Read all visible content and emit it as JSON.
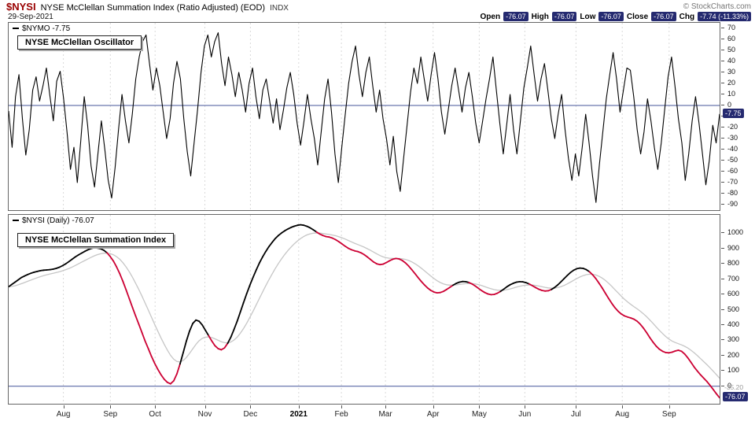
{
  "header": {
    "symbol": "$NYSI",
    "title": "NYSE McClellan Summation Index (Ratio Adjusted) (EOD)",
    "exchange": "INDX",
    "copyright": "© StockCharts.com",
    "date": "29-Sep-2021",
    "quote": {
      "open_label": "Open",
      "open": "-76.07",
      "high_label": "High",
      "high": "-76.07",
      "low_label": "Low",
      "low": "-76.07",
      "close_label": "Close",
      "close": "-76.07",
      "chg_label": "Chg",
      "chg": "-7.74 (-11.33%)"
    }
  },
  "panels": {
    "oscillator": {
      "legend": "$NYMO -7.75",
      "box_label": "NYSE McClellan Oscillator",
      "last_value_label": "-7.75"
    },
    "summation": {
      "legend": "$NYSI (Daily) -76.07",
      "box_label": "NYSE McClellan Summation Index",
      "last_value_label": "-76.07",
      "ema_value_label": "-35.20"
    }
  },
  "colors": {
    "symbol_red": "#990000",
    "chip_navy": "#252a70",
    "zero_line_blue": "#44549a",
    "decline_red": "#cc0033",
    "ema_gray": "#c6c6c6",
    "grid_gray": "#d9d9d9"
  },
  "months": {
    "labels": [
      "Aug",
      "Sep",
      "Oct",
      "Nov",
      "Dec",
      "2021",
      "Feb",
      "Mar",
      "Apr",
      "May",
      "Jun",
      "Jul",
      "Aug",
      "Sep"
    ],
    "fractions": [
      0.077,
      0.143,
      0.206,
      0.276,
      0.34,
      0.408,
      0.468,
      0.53,
      0.597,
      0.662,
      0.726,
      0.798,
      0.863,
      0.929
    ],
    "bold": "2021"
  },
  "chart_data": [
    {
      "type": "line",
      "name": "$NYMO",
      "title": "NYSE McClellan Oscillator",
      "ylim": [
        -95,
        75
      ],
      "yticks": [
        70,
        60,
        50,
        40,
        30,
        20,
        10,
        0,
        -10,
        -20,
        -30,
        -40,
        -50,
        -60,
        -70,
        -80,
        -90
      ],
      "zero_line": 0,
      "grid": "vertical-dashed-monthly",
      "legend_position": "top-left",
      "x_ticks": [
        "Aug",
        "Sep",
        "Oct",
        "Nov",
        "Dec",
        "2021",
        "Feb",
        "Mar",
        "Apr",
        "May",
        "Jun",
        "Jul",
        "Aug",
        "Sep"
      ],
      "last": -7.75,
      "values": [
        -5,
        -38,
        8,
        28,
        -12,
        -45,
        -22,
        14,
        26,
        4,
        18,
        34,
        9,
        -14,
        22,
        31,
        6,
        -24,
        -58,
        -38,
        -70,
        -32,
        8,
        -18,
        -55,
        -74,
        -44,
        -14,
        -40,
        -68,
        -84,
        -56,
        -22,
        10,
        -14,
        -34,
        -8,
        24,
        44,
        58,
        64,
        38,
        14,
        34,
        18,
        -6,
        -30,
        -12,
        20,
        40,
        24,
        -12,
        -42,
        -64,
        -34,
        -4,
        30,
        54,
        64,
        44,
        58,
        66,
        38,
        18,
        44,
        28,
        8,
        30,
        14,
        -6,
        20,
        34,
        8,
        -12,
        14,
        24,
        4,
        -16,
        6,
        -22,
        -4,
        16,
        30,
        10,
        -16,
        -36,
        -14,
        10,
        -12,
        -30,
        -54,
        -24,
        6,
        24,
        -6,
        -44,
        -70,
        -38,
        -8,
        20,
        40,
        54,
        28,
        8,
        30,
        44,
        18,
        -6,
        14,
        -12,
        -30,
        -54,
        -28,
        -60,
        -78,
        -48,
        -18,
        12,
        34,
        20,
        44,
        24,
        4,
        28,
        48,
        24,
        -6,
        -26,
        -4,
        18,
        34,
        14,
        -6,
        16,
        30,
        8,
        -16,
        -34,
        -14,
        6,
        24,
        44,
        14,
        -16,
        -44,
        -18,
        10,
        -22,
        -44,
        -14,
        16,
        34,
        54,
        28,
        4,
        24,
        38,
        14,
        -12,
        -30,
        -8,
        10,
        -22,
        -48,
        -68,
        -44,
        -64,
        -38,
        -8,
        -34,
        -64,
        -88,
        -54,
        -24,
        6,
        28,
        48,
        24,
        -6,
        14,
        34,
        32,
        8,
        -22,
        -44,
        -24,
        6,
        -14,
        -38,
        -58,
        -34,
        -4,
        26,
        44,
        18,
        -12,
        -34,
        -68,
        -44,
        -14,
        8,
        -16,
        -44,
        -72,
        -50,
        -18,
        -34,
        -7.75
      ]
    },
    {
      "type": "line",
      "name": "$NYSI (Daily)",
      "title": "NYSE McClellan Summation Index",
      "ylim": [
        -115,
        1120
      ],
      "yticks": [
        1000,
        900,
        800,
        700,
        600,
        500,
        400,
        300,
        200,
        100,
        0
      ],
      "zero_line": 0,
      "grid": "vertical-dashed-monthly",
      "ema_period": 12,
      "ema_last": -35.2,
      "x_ticks": [
        "Aug",
        "Sep",
        "Oct",
        "Nov",
        "Dec",
        "2021",
        "Feb",
        "Mar",
        "Apr",
        "May",
        "Jun",
        "Jul",
        "Aug",
        "Sep"
      ],
      "last": -76.07,
      "values": [
        650,
        665,
        680,
        695,
        710,
        720,
        730,
        738,
        745,
        750,
        755,
        758,
        760,
        762,
        765,
        770,
        778,
        788,
        800,
        815,
        830,
        845,
        858,
        870,
        882,
        892,
        900,
        905,
        903,
        898,
        888,
        872,
        848,
        818,
        780,
        735,
        685,
        630,
        572,
        515,
        460,
        405,
        350,
        295,
        245,
        195,
        150,
        110,
        75,
        45,
        25,
        15,
        35,
        80,
        145,
        220,
        295,
        360,
        410,
        432,
        425,
        400,
        365,
        330,
        295,
        265,
        245,
        238,
        250,
        280,
        320,
        370,
        425,
        485,
        545,
        605,
        660,
        712,
        760,
        805,
        845,
        880,
        912,
        940,
        965,
        985,
        1002,
        1016,
        1028,
        1038,
        1046,
        1052,
        1055,
        1052,
        1045,
        1035,
        1022,
        1008,
        995,
        985,
        978,
        975,
        968,
        958,
        945,
        930,
        915,
        902,
        892,
        885,
        880,
        872,
        860,
        845,
        828,
        812,
        800,
        795,
        798,
        808,
        820,
        830,
        835,
        832,
        822,
        806,
        786,
        762,
        736,
        710,
        685,
        662,
        642,
        626,
        615,
        610,
        612,
        620,
        632,
        646,
        660,
        672,
        680,
        684,
        683,
        678,
        668,
        655,
        640,
        625,
        612,
        603,
        598,
        600,
        608,
        620,
        635,
        650,
        663,
        673,
        680,
        683,
        682,
        677,
        668,
        657,
        645,
        634,
        626,
        622,
        624,
        632,
        645,
        662,
        682,
        703,
        724,
        743,
        758,
        768,
        772,
        770,
        762,
        748,
        728,
        703,
        674,
        642,
        608,
        574,
        542,
        514,
        490,
        472,
        460,
        452,
        446,
        438,
        425,
        405,
        380,
        350,
        318,
        288,
        262,
        242,
        228,
        220,
        218,
        222,
        230,
        235,
        228,
        210,
        185,
        155,
        125,
        98,
        74,
        52,
        30,
        5,
        -22,
        -50,
        -76.07
      ]
    }
  ]
}
